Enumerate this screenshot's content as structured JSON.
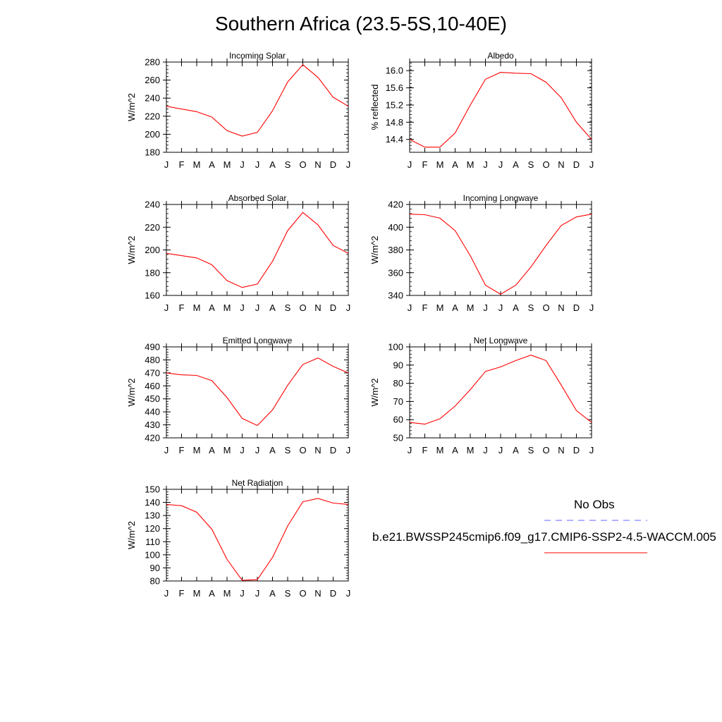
{
  "page": {
    "title": "Southern Africa (23.5-5S,10-40E)"
  },
  "months": [
    "J",
    "F",
    "M",
    "A",
    "M",
    "J",
    "J",
    "A",
    "S",
    "O",
    "N",
    "D",
    "J"
  ],
  "chart_data": [
    {
      "type": "line",
      "title": "Incoming Solar",
      "ylabel": "W/m^2",
      "ylim": [
        180,
        280
      ],
      "yticks": [
        180,
        200,
        220,
        240,
        260,
        280
      ],
      "ytick_labels": [
        "180",
        "200",
        "220",
        "240",
        "260",
        "280"
      ],
      "series": [
        {
          "values": [
            231,
            228,
            225,
            219,
            204,
            198,
            202,
            226,
            258,
            277,
            263,
            241,
            231
          ],
          "color": "#ff0000"
        }
      ]
    },
    {
      "type": "line",
      "title": "Albedo",
      "ylabel": "% reflected",
      "ylim": [
        14.1,
        16.2
      ],
      "yticks": [
        14.4,
        14.8,
        15.2,
        15.6,
        16.0
      ],
      "ytick_labels": [
        "14.4",
        "14.8",
        "15.2",
        "15.6",
        "16.0"
      ],
      "series": [
        {
          "values": [
            14.4,
            14.22,
            14.22,
            14.55,
            15.2,
            15.8,
            15.96,
            15.94,
            15.93,
            15.73,
            15.37,
            14.8,
            14.4
          ],
          "color": "#ff0000"
        }
      ]
    },
    {
      "type": "line",
      "title": "Absorbed Solar",
      "ylabel": "W/m^2",
      "ylim": [
        160,
        240
      ],
      "yticks": [
        160,
        180,
        200,
        220,
        240
      ],
      "ytick_labels": [
        "160",
        "180",
        "200",
        "220",
        "240"
      ],
      "series": [
        {
          "values": [
            197,
            195,
            193,
            187,
            173,
            167,
            170,
            190,
            217,
            233,
            222,
            204,
            197
          ],
          "color": "#ff0000"
        }
      ]
    },
    {
      "type": "line",
      "title": "Incoming Longwave",
      "ylabel": "W/m^2",
      "ylim": [
        340,
        420
      ],
      "yticks": [
        340,
        360,
        380,
        400,
        420
      ],
      "ytick_labels": [
        "340",
        "360",
        "380",
        "400",
        "420"
      ],
      "series": [
        {
          "values": [
            411.5,
            411,
            408,
            397,
            375,
            349,
            341,
            349,
            365,
            384,
            401.5,
            409,
            411.5
          ],
          "color": "#ff0000"
        }
      ]
    },
    {
      "type": "line",
      "title": "Emitted Longwave",
      "ylabel": "W/m^2",
      "ylim": [
        420,
        490
      ],
      "yticks": [
        420,
        430,
        440,
        450,
        460,
        470,
        480,
        490
      ],
      "ytick_labels": [
        "420",
        "430",
        "440",
        "450",
        "460",
        "470",
        "480",
        "490"
      ],
      "series": [
        {
          "values": [
            470,
            468.5,
            468,
            464,
            451,
            435,
            429.5,
            441.5,
            460.5,
            476.5,
            481.5,
            475,
            470
          ],
          "color": "#ff0000"
        }
      ]
    },
    {
      "type": "line",
      "title": "Net Longwave",
      "ylabel": "W/m^2",
      "ylim": [
        50,
        100
      ],
      "yticks": [
        50,
        60,
        70,
        80,
        90,
        100
      ],
      "ytick_labels": [
        "50",
        "60",
        "70",
        "80",
        "90",
        "100"
      ],
      "series": [
        {
          "values": [
            58.5,
            57.5,
            60.5,
            67.5,
            76.5,
            86.5,
            89,
            92.5,
            95.5,
            92.5,
            79,
            65,
            58.5
          ],
          "color": "#ff0000"
        }
      ]
    },
    {
      "type": "line",
      "title": "Net Radiation",
      "ylabel": "W/m^2",
      "ylim": [
        80,
        150
      ],
      "yticks": [
        80,
        90,
        100,
        110,
        120,
        130,
        140,
        150
      ],
      "ytick_labels": [
        "80",
        "90",
        "100",
        "110",
        "120",
        "130",
        "140",
        "150"
      ],
      "series": [
        {
          "values": [
            138.5,
            137.5,
            132.5,
            119.5,
            96.5,
            80.5,
            81,
            98,
            122,
            140.5,
            143,
            139.5,
            138.5
          ],
          "color": "#ff0000"
        }
      ]
    }
  ],
  "legend": {
    "entries": [
      {
        "label": "No Obs",
        "color": "#6666ff",
        "dash": "dashed"
      },
      {
        "label": "b.e21.BWSSP245cmip6.f09_g17.CMIP6-SSP2-4.5-WACCM.005",
        "color": "#ff0000",
        "dash": "solid"
      }
    ]
  }
}
